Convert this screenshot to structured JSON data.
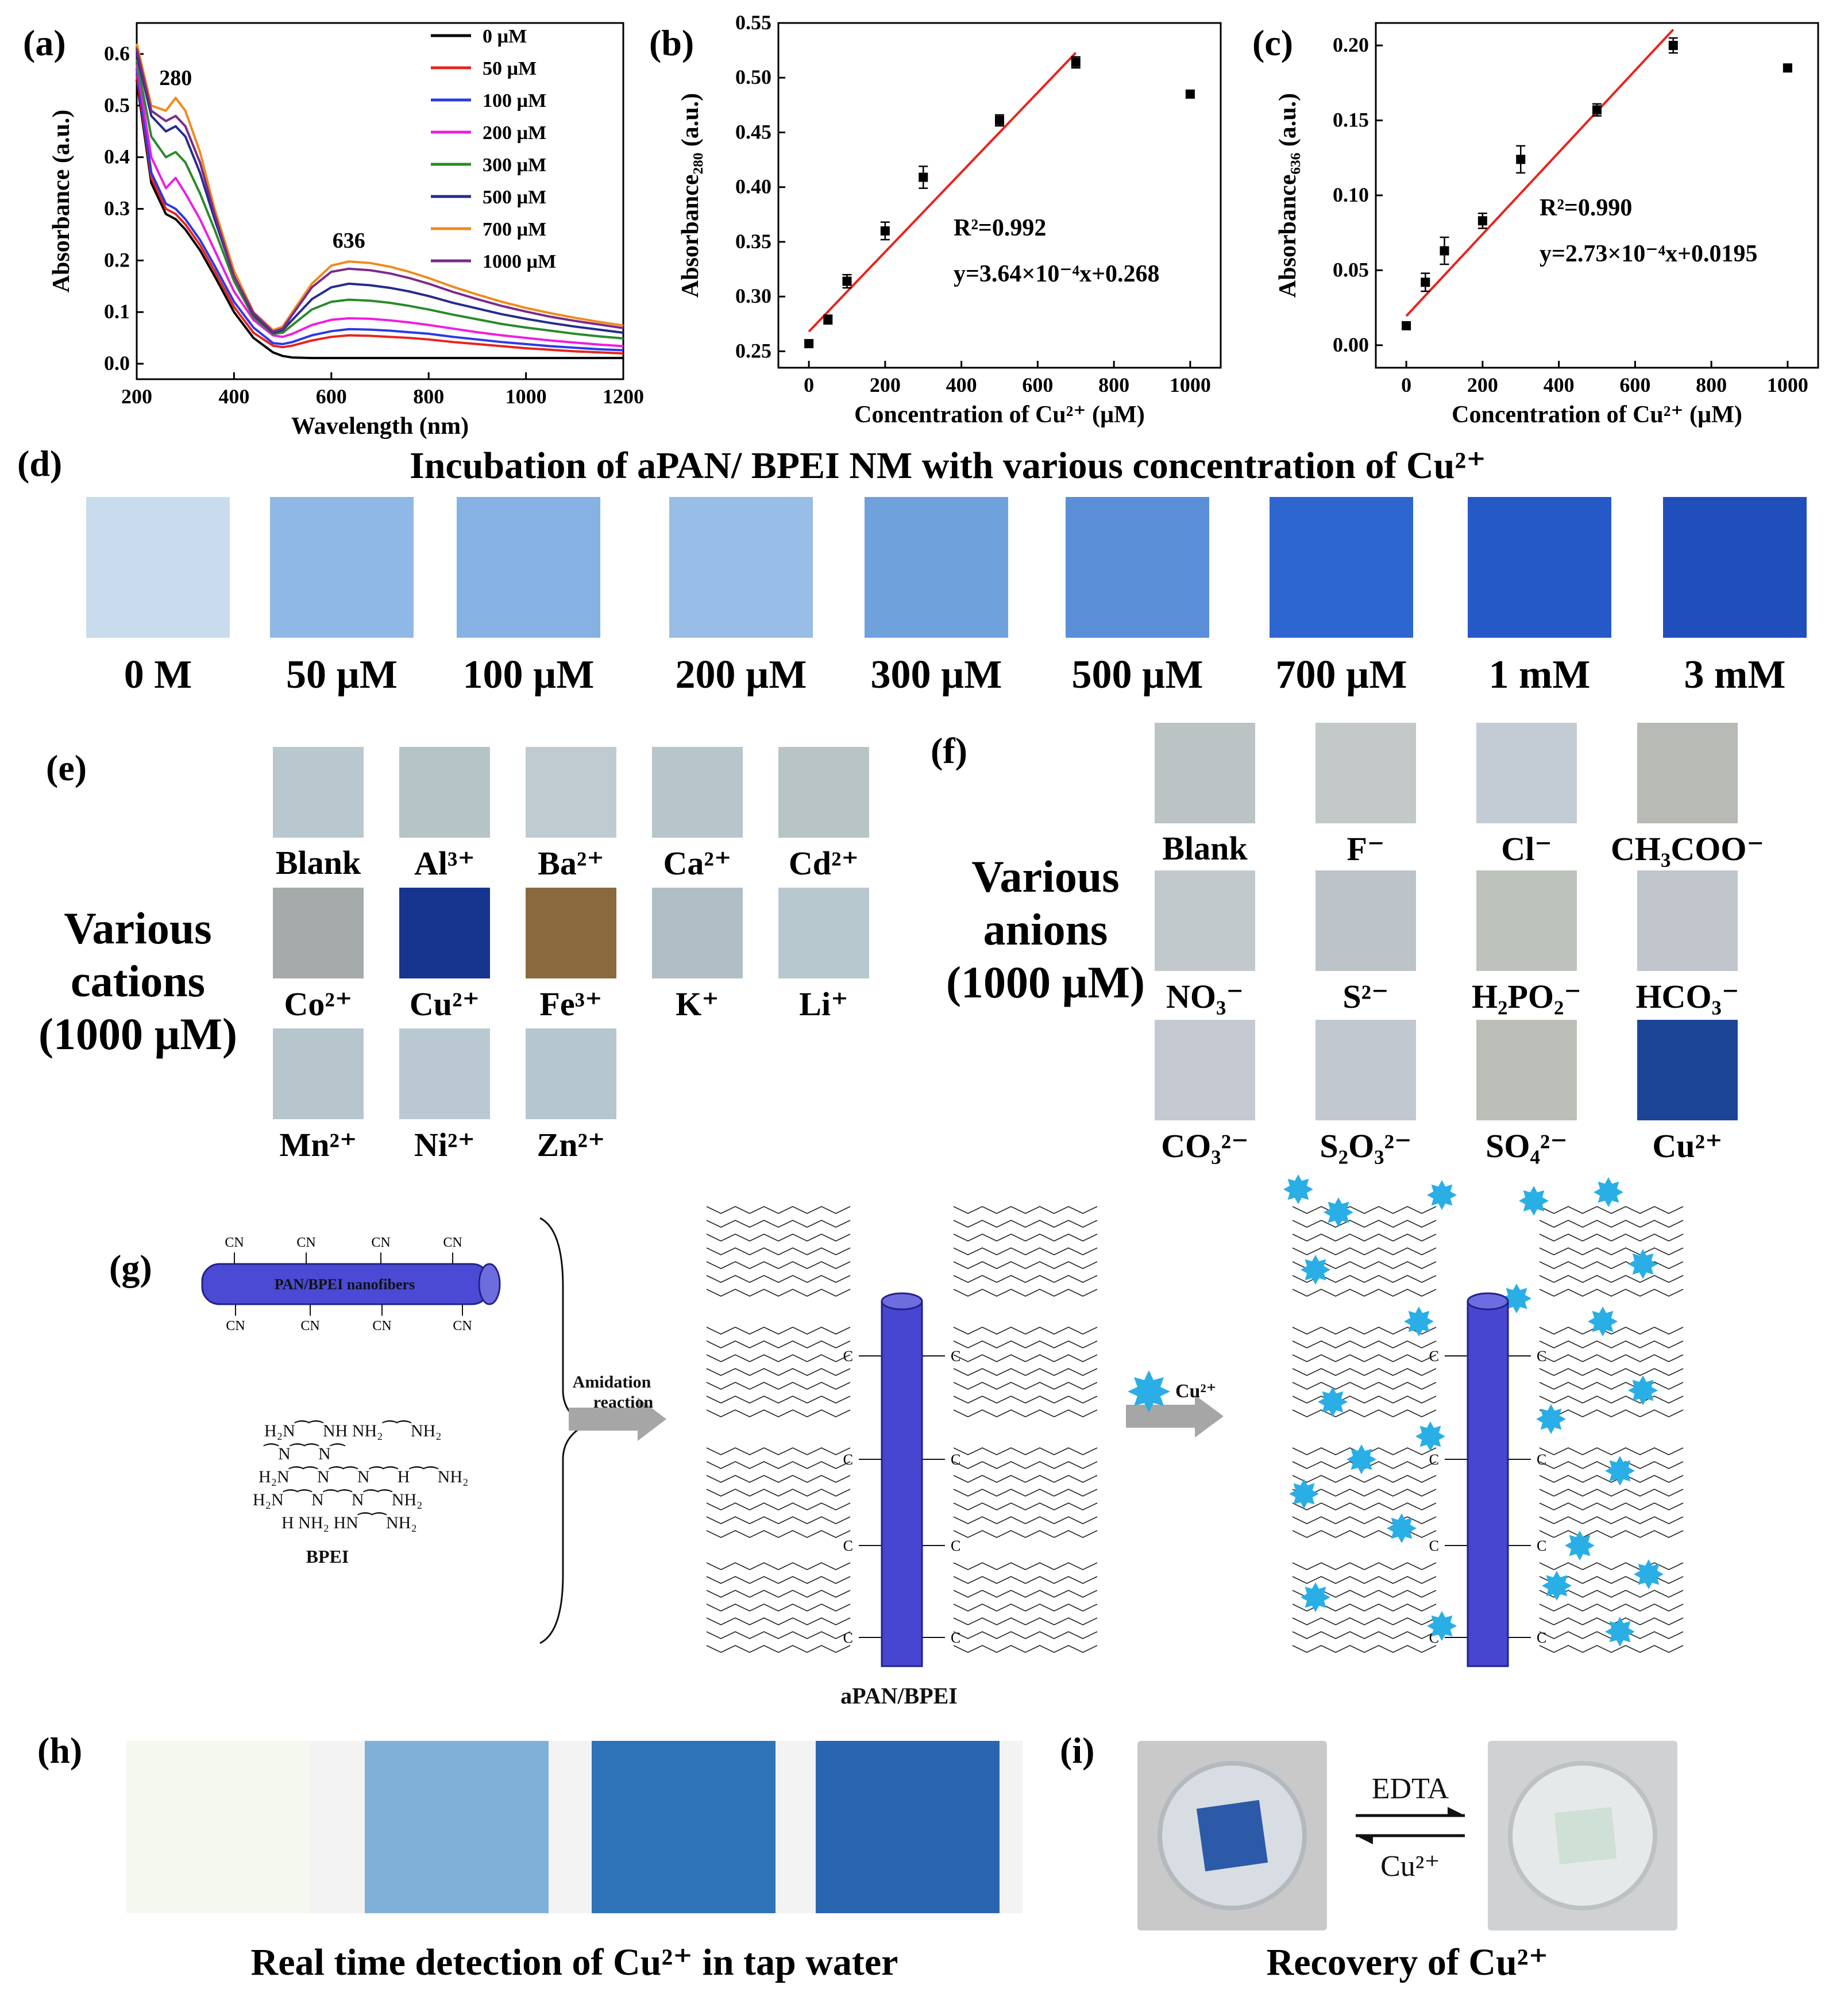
{
  "panels": {
    "a": "(a)",
    "b": "(b)",
    "c": "(c)",
    "d": "(d)",
    "e": "(e)",
    "f": "(f)",
    "g": "(g)",
    "h": "(h)",
    "i": "(i)"
  },
  "chart_data": [
    {
      "id": "a",
      "type": "line",
      "xlabel": "Wavelength (nm)",
      "ylabel": "Absorbance (a.u.)",
      "xlim": [
        200,
        1200
      ],
      "ylim": [
        -0.03,
        0.66
      ],
      "xticks": [
        "200",
        "400",
        "600",
        "800",
        "1000",
        "1200"
      ],
      "yticks": [
        "0.0",
        "0.1",
        "0.2",
        "0.3",
        "0.4",
        "0.5",
        "0.6"
      ],
      "annotations": [
        {
          "text": "280",
          "x": 280,
          "y": 0.54
        },
        {
          "text": "636",
          "x": 636,
          "y": 0.225
        }
      ],
      "x": [
        200,
        230,
        260,
        280,
        300,
        330,
        360,
        400,
        440,
        480,
        500,
        520,
        560,
        600,
        636,
        680,
        720,
        760,
        800,
        850,
        900,
        950,
        1000,
        1050,
        1100,
        1150,
        1200
      ],
      "series": [
        {
          "name": "0 µM",
          "color": "#000000",
          "values": [
            0.55,
            0.35,
            0.29,
            0.28,
            0.26,
            0.22,
            0.17,
            0.1,
            0.05,
            0.022,
            0.015,
            0.012,
            0.011,
            0.011,
            0.011,
            0.011,
            0.011,
            0.011,
            0.011,
            0.011,
            0.011,
            0.011,
            0.011,
            0.011,
            0.011,
            0.011,
            0.011
          ]
        },
        {
          "name": "50 µM",
          "color": "#e8231c",
          "values": [
            0.56,
            0.36,
            0.3,
            0.29,
            0.27,
            0.23,
            0.18,
            0.11,
            0.06,
            0.035,
            0.032,
            0.035,
            0.045,
            0.052,
            0.055,
            0.054,
            0.052,
            0.05,
            0.047,
            0.042,
            0.038,
            0.034,
            0.03,
            0.027,
            0.024,
            0.022,
            0.02
          ]
        },
        {
          "name": "100 µM",
          "color": "#2a3ae8",
          "values": [
            0.57,
            0.37,
            0.31,
            0.3,
            0.28,
            0.24,
            0.19,
            0.12,
            0.07,
            0.04,
            0.038,
            0.042,
            0.055,
            0.063,
            0.067,
            0.066,
            0.064,
            0.061,
            0.058,
            0.052,
            0.047,
            0.042,
            0.038,
            0.034,
            0.031,
            0.028,
            0.026
          ]
        },
        {
          "name": "200 µM",
          "color": "#ee1de0",
          "values": [
            0.58,
            0.4,
            0.34,
            0.36,
            0.33,
            0.28,
            0.22,
            0.14,
            0.085,
            0.055,
            0.052,
            0.058,
            0.075,
            0.085,
            0.088,
            0.087,
            0.084,
            0.08,
            0.075,
            0.068,
            0.061,
            0.055,
            0.05,
            0.045,
            0.041,
            0.037,
            0.034
          ]
        },
        {
          "name": "300 µM",
          "color": "#2a8a2a",
          "values": [
            0.59,
            0.44,
            0.4,
            0.41,
            0.39,
            0.33,
            0.26,
            0.16,
            0.09,
            0.058,
            0.06,
            0.075,
            0.105,
            0.12,
            0.124,
            0.122,
            0.118,
            0.112,
            0.105,
            0.095,
            0.086,
            0.077,
            0.07,
            0.064,
            0.058,
            0.053,
            0.049
          ]
        },
        {
          "name": "500 µM",
          "color": "#262b8f",
          "values": [
            0.6,
            0.48,
            0.45,
            0.46,
            0.44,
            0.37,
            0.28,
            0.17,
            0.095,
            0.06,
            0.065,
            0.085,
            0.125,
            0.148,
            0.155,
            0.152,
            0.147,
            0.14,
            0.131,
            0.118,
            0.107,
            0.096,
            0.087,
            0.079,
            0.072,
            0.066,
            0.06
          ]
        },
        {
          "name": "700 µM",
          "color": "#f08a1c",
          "values": [
            0.62,
            0.5,
            0.49,
            0.515,
            0.49,
            0.41,
            0.3,
            0.18,
            0.1,
            0.065,
            0.072,
            0.1,
            0.155,
            0.19,
            0.198,
            0.195,
            0.188,
            0.178,
            0.166,
            0.149,
            0.134,
            0.12,
            0.108,
            0.098,
            0.089,
            0.081,
            0.074
          ]
        },
        {
          "name": "1000 µM",
          "color": "#7b2a8a",
          "values": [
            0.61,
            0.49,
            0.47,
            0.48,
            0.46,
            0.39,
            0.29,
            0.17,
            0.098,
            0.062,
            0.068,
            0.095,
            0.148,
            0.178,
            0.184,
            0.181,
            0.175,
            0.166,
            0.155,
            0.139,
            0.125,
            0.112,
            0.101,
            0.091,
            0.083,
            0.076,
            0.069
          ]
        }
      ]
    },
    {
      "id": "b",
      "type": "scatter",
      "xlabel": "Concentration of Cu²⁺ (µM)",
      "ylabel": "Absorbance₂₈₀ (a.u.)",
      "xlim": [
        -80,
        1080
      ],
      "ylim": [
        0.235,
        0.55
      ],
      "xticks": [
        "0",
        "200",
        "400",
        "600",
        "800",
        "1000"
      ],
      "yticks": [
        "0.25",
        "0.30",
        "0.35",
        "0.40",
        "0.45",
        "0.50",
        "0.55"
      ],
      "x": [
        0,
        50,
        100,
        200,
        300,
        500,
        700,
        1000
      ],
      "values": [
        0.257,
        0.279,
        0.314,
        0.36,
        0.409,
        0.461,
        0.514,
        0.485
      ],
      "errors": [
        0.003,
        0.004,
        0.006,
        0.008,
        0.01,
        0.005,
        0.005,
        0.003
      ],
      "fit": {
        "x0": 0,
        "x1": 700,
        "slope": 0.000364,
        "intercept": 0.268,
        "color": "#e8231c"
      },
      "r2": "R²=0.992",
      "equation": "y=3.64×10⁻⁴x+0.268"
    },
    {
      "id": "c",
      "type": "scatter",
      "xlabel": "Concentration of Cu²⁺ (µM)",
      "ylabel": "Absorbance₆₃₆ (a.u.)",
      "xlim": [
        -80,
        1080
      ],
      "ylim": [
        -0.015,
        0.215
      ],
      "xticks": [
        "0",
        "200",
        "400",
        "600",
        "800",
        "1000"
      ],
      "yticks": [
        "0.00",
        "0.05",
        "0.10",
        "0.15",
        "0.20"
      ],
      "x": [
        0,
        50,
        100,
        200,
        300,
        500,
        700,
        1000
      ],
      "values": [
        0.013,
        0.042,
        0.063,
        0.083,
        0.124,
        0.157,
        0.2,
        0.185
      ],
      "errors": [
        0.002,
        0.006,
        0.009,
        0.005,
        0.009,
        0.004,
        0.005,
        0.002
      ],
      "fit": {
        "x0": 0,
        "x1": 700,
        "slope": 0.000273,
        "intercept": 0.0195,
        "color": "#e8231c"
      },
      "r2": "R²=0.990",
      "equation": "y=2.73×10⁻⁴x+0.0195"
    }
  ],
  "section_d": {
    "title": "Incubation of aPAN/ BPEI NM with various concentration of Cu²⁺",
    "items": [
      {
        "label": "0 M",
        "color": "#c9dcee"
      },
      {
        "label": "50 µM",
        "color": "#8fb8e6"
      },
      {
        "label": "100 µM",
        "color": "#86b1e3"
      },
      {
        "label": "200 µM",
        "color": "#98bde6"
      },
      {
        "label": "300 µM",
        "color": "#6fa1dd"
      },
      {
        "label": "500 µM",
        "color": "#5a8fd8"
      },
      {
        "label": "700 µM",
        "color": "#2e66cf"
      },
      {
        "label": "1 mM",
        "color": "#2559c8"
      },
      {
        "label": "3 mM",
        "color": "#1f4fba"
      }
    ]
  },
  "section_e": {
    "side_label": [
      "Various",
      "cations",
      "(1000 µM)"
    ],
    "items": [
      {
        "label": "Blank",
        "color": "#b9c8cf"
      },
      {
        "label": "Al³⁺",
        "color": "#b6c3c7"
      },
      {
        "label": "Ba²⁺",
        "color": "#bfcbd1"
      },
      {
        "label": "Ca²⁺",
        "color": "#b8c5cb"
      },
      {
        "label": "Cd²⁺",
        "color": "#b8c4c5"
      },
      {
        "label": "Co²⁺",
        "color": "#a5aaab"
      },
      {
        "label": "Cu²⁺",
        "color": "#17348f"
      },
      {
        "label": "Fe³⁺",
        "color": "#8a6a3c"
      },
      {
        "label": "K⁺",
        "color": "#b0bfc6"
      },
      {
        "label": "Li⁺",
        "color": "#b8c8cf"
      },
      {
        "label": "Mn²⁺",
        "color": "#b7c6cd"
      },
      {
        "label": "Ni²⁺",
        "color": "#bac9d1"
      },
      {
        "label": "Zn²⁺",
        "color": "#b5c6cf"
      }
    ]
  },
  "section_f": {
    "side_label": [
      "Various",
      "anions",
      "(1000 µM)"
    ],
    "items": [
      {
        "label": "Blank",
        "color": "#bcc3c4"
      },
      {
        "label": "F⁻",
        "color": "#c2c9c8"
      },
      {
        "label": "Cl⁻",
        "color": "#c3cbd4"
      },
      {
        "label": "CH₃COO⁻",
        "color": "#b7bab5"
      },
      {
        "label": "NO₃⁻",
        "color": "#c2c9cc"
      },
      {
        "label": "S²⁻",
        "color": "#bcc4c9"
      },
      {
        "label": "H₂PO₂⁻",
        "color": "#bdc2bd"
      },
      {
        "label": "HCO₃⁻",
        "color": "#c0c6cc"
      },
      {
        "label": "CO₃²⁻",
        "color": "#c4c9d2"
      },
      {
        "label": "S₂O₃²⁻",
        "color": "#c2c8d0"
      },
      {
        "label": "SO₄²⁻",
        "color": "#bcbfb8"
      },
      {
        "label": "Cu²⁺",
        "color": "#1c4596"
      }
    ]
  },
  "section_g": {
    "fiber_label": "PAN/BPEI nanofibers",
    "cn": "CN",
    "bpei_label": "BPEI",
    "arrow1": [
      "Amidation",
      "reaction"
    ],
    "arrow2": "Cu²⁺",
    "product_label": "aPAN/BPEI",
    "c_label": "C",
    "bpei_lines": [
      "H₂N⁀⁀NH  NH₂⁀⁀NH₂",
      "   ⁀N⁀⁀N⁀",
      "H₂N⁀⁀N⁀⁀N⁀⁀H⁀⁀NH₂",
      "H₂N⁀⁀N⁀⁀N⁀⁀NH₂",
      "  H   NH₂  HN⁀⁀NH₂"
    ],
    "colors": {
      "fiber": "#4646d0",
      "star": "#29aee6",
      "arrow": "#a6a6a6"
    }
  },
  "section_h": {
    "title": "Real time detection of Cu²⁺ in tap water",
    "strips": [
      "#f4f8ee",
      "#7fb1d8",
      "#2f73b8",
      "#2a66b0"
    ]
  },
  "section_i": {
    "title": "Recovery of Cu²⁺",
    "arrow_top": "EDTA",
    "arrow_bottom": "Cu²⁺"
  }
}
